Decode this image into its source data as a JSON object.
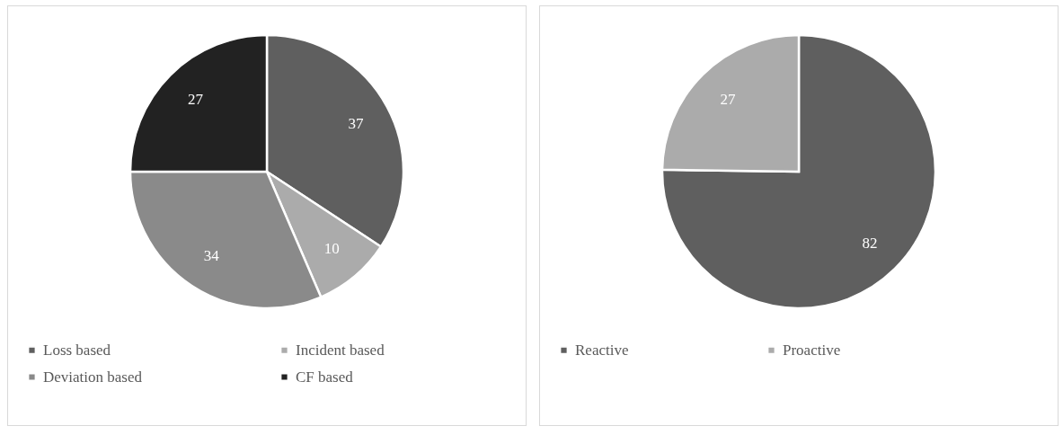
{
  "chart_data": [
    {
      "type": "pie",
      "categories": [
        "Loss based",
        "Incident based",
        "Deviation based",
        "CF based"
      ],
      "values": [
        37,
        10,
        34,
        27
      ],
      "colors": [
        "#5f5f5f",
        "#ababab",
        "#8a8a8a",
        "#222222"
      ],
      "data_labels": true,
      "legend": "bottom"
    },
    {
      "type": "pie",
      "categories": [
        "Reactive",
        "Proactive"
      ],
      "values": [
        82,
        27
      ],
      "colors": [
        "#5f5f5f",
        "#ababab"
      ],
      "data_labels": true,
      "legend": "bottom"
    }
  ]
}
